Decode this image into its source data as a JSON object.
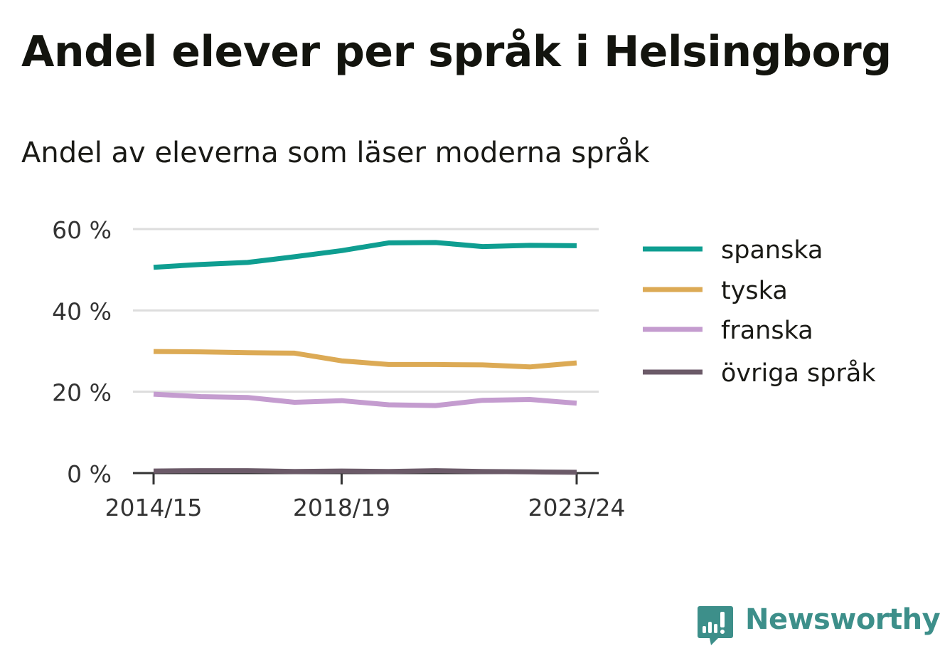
{
  "title": "Andel elever per språk i Helsingborg",
  "subtitle": "Andel av eleverna som läser moderna språk",
  "brand": "Newsworthy",
  "colors": {
    "brand": "#3d8f8a",
    "grid": "#dddddd",
    "axis": "#333333",
    "tick_text": "#333333"
  },
  "chart_data": {
    "type": "line",
    "x": [
      "2014/15",
      "2015/16",
      "2016/17",
      "2017/18",
      "2018/19",
      "2019/20",
      "2020/21",
      "2021/22",
      "2022/23",
      "2023/24"
    ],
    "x_tick_labels": [
      "2014/15",
      "2018/19",
      "2023/24"
    ],
    "y_ticks": [
      0,
      20,
      40,
      60
    ],
    "y_tick_labels": [
      "0 %",
      "20 %",
      "40 %",
      "60 %"
    ],
    "ylim": [
      0,
      60
    ],
    "grid": true,
    "legend_position": "right",
    "series": [
      {
        "name": "spanska",
        "color": "#0f9e91",
        "values": [
          50.6,
          51.3,
          51.8,
          53.2,
          54.7,
          56.6,
          56.7,
          55.7,
          56.0,
          55.9
        ]
      },
      {
        "name": "tyska",
        "color": "#dcaa55",
        "values": [
          29.9,
          29.8,
          29.6,
          29.5,
          27.6,
          26.7,
          26.7,
          26.6,
          26.1,
          27.1
        ]
      },
      {
        "name": "franska",
        "color": "#c49ccf",
        "values": [
          19.4,
          18.8,
          18.6,
          17.4,
          17.8,
          16.8,
          16.6,
          17.9,
          18.1,
          17.2
        ]
      },
      {
        "name": "övriga språk",
        "color": "#6b5a68",
        "values": [
          0.5,
          0.6,
          0.6,
          0.4,
          0.5,
          0.4,
          0.6,
          0.4,
          0.3,
          0.2
        ]
      }
    ]
  }
}
